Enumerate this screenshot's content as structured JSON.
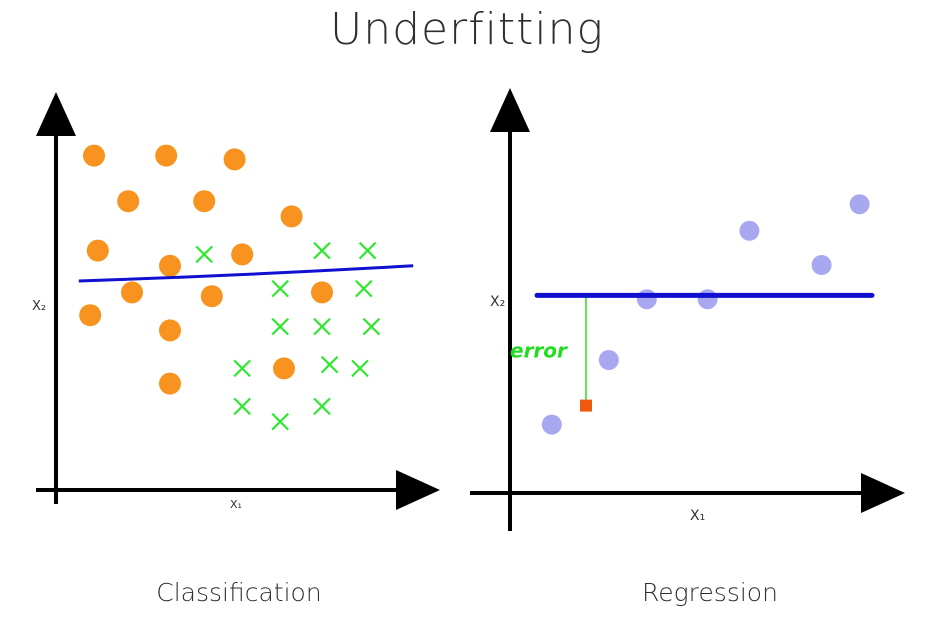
{
  "title": "Underfitting",
  "colors": {
    "axis": "#000000",
    "fit_line": "#1010d0",
    "class_a": "#f7931e",
    "class_b": "#2ee82e",
    "reg_points": "#a8a8f0",
    "error_marker": "#ee5a10",
    "error_text": "#22dd22"
  },
  "chart_data": [
    {
      "type": "scatter",
      "subtitle": "Classification",
      "xlabel": "X₁",
      "ylabel": "X₂",
      "xlim": [
        0,
        10
      ],
      "ylim": [
        0,
        10
      ],
      "grid": false,
      "series": [
        {
          "marker": "circle",
          "color": "#f7931e",
          "points": [
            [
              1.0,
              8.8
            ],
            [
              2.9,
              8.8
            ],
            [
              4.7,
              8.7
            ],
            [
              1.9,
              7.6
            ],
            [
              3.9,
              7.6
            ],
            [
              6.2,
              7.2
            ],
            [
              1.1,
              6.3
            ],
            [
              3.0,
              5.9
            ],
            [
              4.9,
              6.2
            ],
            [
              2.0,
              5.2
            ],
            [
              4.1,
              5.1
            ],
            [
              7.0,
              5.2
            ],
            [
              0.9,
              4.6
            ],
            [
              3.0,
              4.2
            ],
            [
              6.0,
              3.2
            ],
            [
              3.0,
              2.8
            ]
          ]
        },
        {
          "marker": "x",
          "color": "#2ee82e",
          "points": [
            [
              3.9,
              6.2
            ],
            [
              7.0,
              6.3
            ],
            [
              8.2,
              6.3
            ],
            [
              5.9,
              5.3
            ],
            [
              8.1,
              5.3
            ],
            [
              5.9,
              4.3
            ],
            [
              7.0,
              4.3
            ],
            [
              8.3,
              4.3
            ],
            [
              7.2,
              3.3
            ],
            [
              8.0,
              3.2
            ],
            [
              4.9,
              3.2
            ],
            [
              4.9,
              2.2
            ],
            [
              5.9,
              1.8
            ],
            [
              7.0,
              2.2
            ]
          ]
        }
      ],
      "fit_line": [
        [
          0.6,
          5.5
        ],
        [
          9.4,
          5.9
        ]
      ]
    },
    {
      "type": "scatter",
      "subtitle": "Regression",
      "xlabel": "X₁",
      "ylabel": "X₂",
      "xlim": [
        0,
        10
      ],
      "ylim": [
        0,
        10
      ],
      "grid": false,
      "series": [
        {
          "marker": "circle",
          "color": "#a8a8f0",
          "points": [
            [
              1.1,
              1.8
            ],
            [
              2.6,
              3.5
            ],
            [
              3.6,
              5.1
            ],
            [
              5.2,
              5.1
            ],
            [
              6.3,
              6.9
            ],
            [
              8.2,
              6.0
            ],
            [
              9.2,
              7.6
            ]
          ]
        }
      ],
      "fit_line": [
        [
          0.5,
          5.2
        ],
        [
          10.0,
          5.2
        ]
      ],
      "error_point": [
        2.0,
        2.3
      ],
      "annotation": "error"
    }
  ]
}
